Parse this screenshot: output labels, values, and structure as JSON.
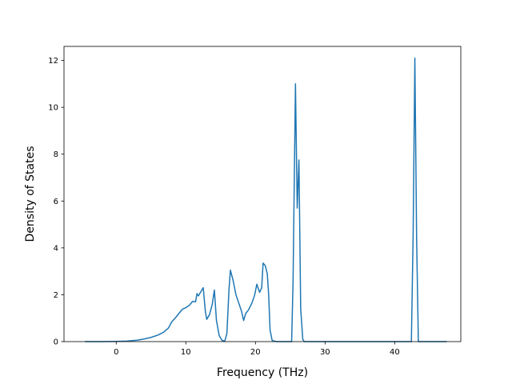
{
  "chart_data": {
    "type": "line",
    "title": "",
    "xlabel": "Frequency (THz)",
    "ylabel": "Density of States",
    "xlim": [
      -7.5,
      49.5
    ],
    "ylim": [
      0,
      12.6
    ],
    "xticks": [
      0,
      10,
      20,
      30,
      40
    ],
    "yticks": [
      0,
      2,
      4,
      6,
      8,
      10,
      12
    ],
    "grid": false,
    "legend": "none",
    "series": [
      {
        "color": "#1f77b4",
        "points": [
          [
            -4.5,
            0
          ],
          [
            -2.0,
            0
          ],
          [
            0.0,
            0.01
          ],
          [
            1.5,
            0.02
          ],
          [
            3.0,
            0.06
          ],
          [
            4.0,
            0.11
          ],
          [
            5.0,
            0.18
          ],
          [
            6.0,
            0.28
          ],
          [
            6.8,
            0.4
          ],
          [
            7.5,
            0.58
          ],
          [
            8.0,
            0.85
          ],
          [
            8.6,
            1.05
          ],
          [
            9.0,
            1.2
          ],
          [
            9.5,
            1.38
          ],
          [
            10.0,
            1.45
          ],
          [
            10.5,
            1.55
          ],
          [
            11.0,
            1.72
          ],
          [
            11.4,
            1.7
          ],
          [
            11.6,
            2.05
          ],
          [
            11.8,
            1.95
          ],
          [
            12.1,
            2.1
          ],
          [
            12.5,
            2.3
          ],
          [
            12.8,
            1.3
          ],
          [
            13.0,
            0.95
          ],
          [
            13.4,
            1.15
          ],
          [
            13.8,
            1.6
          ],
          [
            14.1,
            2.2
          ],
          [
            14.4,
            0.9
          ],
          [
            14.8,
            0.25
          ],
          [
            15.2,
            0.05
          ],
          [
            15.6,
            0.02
          ],
          [
            15.9,
            0.35
          ],
          [
            16.2,
            2.2
          ],
          [
            16.4,
            3.05
          ],
          [
            16.8,
            2.6
          ],
          [
            17.2,
            2.0
          ],
          [
            17.6,
            1.65
          ],
          [
            18.0,
            1.3
          ],
          [
            18.3,
            0.9
          ],
          [
            18.6,
            1.2
          ],
          [
            19.0,
            1.35
          ],
          [
            19.5,
            1.65
          ],
          [
            19.9,
            2.0
          ],
          [
            20.2,
            2.45
          ],
          [
            20.6,
            2.1
          ],
          [
            20.9,
            2.3
          ],
          [
            21.1,
            3.35
          ],
          [
            21.4,
            3.25
          ],
          [
            21.7,
            2.9
          ],
          [
            21.9,
            2.0
          ],
          [
            22.1,
            0.5
          ],
          [
            22.4,
            0.05
          ],
          [
            23.0,
            0.0
          ],
          [
            25.2,
            0.0
          ],
          [
            25.4,
            2.5
          ],
          [
            25.75,
            11.0
          ],
          [
            26.0,
            5.7
          ],
          [
            26.25,
            7.75
          ],
          [
            26.5,
            1.4
          ],
          [
            26.8,
            0.1
          ],
          [
            27.0,
            0.0
          ],
          [
            42.4,
            0.0
          ],
          [
            42.65,
            4.5
          ],
          [
            42.9,
            12.1
          ],
          [
            43.15,
            4.5
          ],
          [
            43.4,
            0.0
          ],
          [
            47.5,
            0.0
          ]
        ]
      }
    ]
  }
}
